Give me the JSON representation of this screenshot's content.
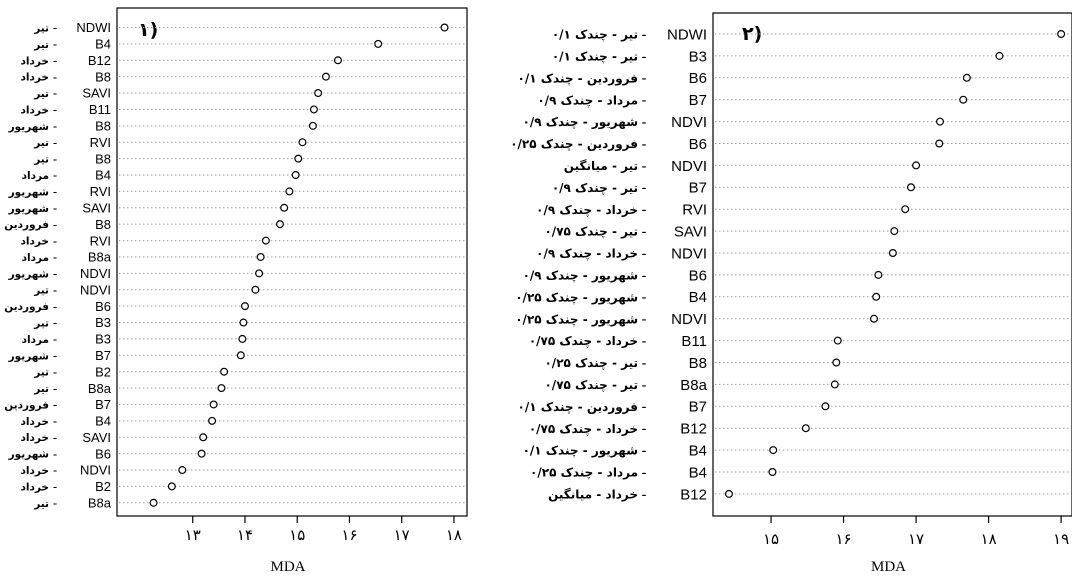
{
  "chart_data": [
    {
      "type": "scatter",
      "panel_label": "۱)",
      "xlabel": "MDA",
      "xlim": [
        11.55,
        18.25
      ],
      "x_ticks": [
        13,
        14,
        15,
        16,
        17,
        18
      ],
      "x_tick_labels": [
        "۱۳",
        "۱۴",
        "۱۵",
        "۱۶",
        "۱۷",
        "۱۸"
      ],
      "grid": "dotted horizontal lines per row",
      "rows": [
        {
          "variable": "NDWI",
          "date": "تیر",
          "value": 17.82
        },
        {
          "variable": "B4",
          "date": "تیر",
          "value": 16.55
        },
        {
          "variable": "B12",
          "date": "خرداد",
          "value": 15.78
        },
        {
          "variable": "B8",
          "date": "خرداد",
          "value": 15.55
        },
        {
          "variable": "SAVI",
          "date": "تیر",
          "value": 15.4
        },
        {
          "variable": "B11",
          "date": "خرداد",
          "value": 15.32
        },
        {
          "variable": "B8",
          "date": "شهریور",
          "value": 15.3
        },
        {
          "variable": "RVI",
          "date": "تیر",
          "value": 15.1
        },
        {
          "variable": "B8",
          "date": "تیر",
          "value": 15.02
        },
        {
          "variable": "B4",
          "date": "مرداد",
          "value": 14.97
        },
        {
          "variable": "RVI",
          "date": "شهریور",
          "value": 14.85
        },
        {
          "variable": "SAVI",
          "date": "شهریور",
          "value": 14.75
        },
        {
          "variable": "B8",
          "date": "فروردین",
          "value": 14.67
        },
        {
          "variable": "RVI",
          "date": "خرداد",
          "value": 14.4
        },
        {
          "variable": "B8a",
          "date": "مرداد",
          "value": 14.3
        },
        {
          "variable": "NDVI",
          "date": "شهریور",
          "value": 14.27
        },
        {
          "variable": "NDVI",
          "date": "تیر",
          "value": 14.2
        },
        {
          "variable": "B6",
          "date": "فروردین",
          "value": 14.0
        },
        {
          "variable": "B3",
          "date": "تیر",
          "value": 13.97
        },
        {
          "variable": "B3",
          "date": "مرداد",
          "value": 13.95
        },
        {
          "variable": "B7",
          "date": "شهریور",
          "value": 13.92
        },
        {
          "variable": "B2",
          "date": "تیر",
          "value": 13.6
        },
        {
          "variable": "B8a",
          "date": "تیر",
          "value": 13.55
        },
        {
          "variable": "B7",
          "date": "فروردین",
          "value": 13.4
        },
        {
          "variable": "B4",
          "date": "خرداد",
          "value": 13.37
        },
        {
          "variable": "SAVI",
          "date": "خرداد",
          "value": 13.2
        },
        {
          "variable": "B6",
          "date": "شهریور",
          "value": 13.17
        },
        {
          "variable": "NDVI",
          "date": "خرداد",
          "value": 12.8
        },
        {
          "variable": "B2",
          "date": "خرداد",
          "value": 12.6
        },
        {
          "variable": "B8a",
          "date": "تیر",
          "value": 12.25
        }
      ]
    },
    {
      "type": "scatter",
      "panel_label": "۲)",
      "xlabel": "MDA",
      "xlim": [
        14.2,
        19.15
      ],
      "x_ticks": [
        15,
        16,
        17,
        18,
        19
      ],
      "x_tick_labels": [
        "۱۵",
        "۱۶",
        "۱۷",
        "۱۸",
        "۱۹"
      ],
      "grid": "dotted horizontal lines per row",
      "rows": [
        {
          "variable": "NDWI",
          "date": "تیر - چندک ۰/۱",
          "value": 19.0
        },
        {
          "variable": "B3",
          "date": "تیر - چندک ۰/۱",
          "value": 18.15
        },
        {
          "variable": "B6",
          "date": "فروردین - چندک ۰/۱",
          "value": 17.7
        },
        {
          "variable": "B7",
          "date": "مرداد - چندک ۰/۹",
          "value": 17.65
        },
        {
          "variable": "NDVI",
          "date": "شهریور - چندک ۰/۹",
          "value": 17.33
        },
        {
          "variable": "B6",
          "date": "فروردین - چندک ۰/۲۵",
          "value": 17.32
        },
        {
          "variable": "NDVI",
          "date": "تیر - میانگین",
          "value": 17.0
        },
        {
          "variable": "B7",
          "date": "تیر - چندک ۰/۹",
          "value": 16.93
        },
        {
          "variable": "RVI",
          "date": "خرداد - چندک ۰/۹",
          "value": 16.85
        },
        {
          "variable": "SAVI",
          "date": "تیر - چندک ۰/۷۵",
          "value": 16.7
        },
        {
          "variable": "NDVI",
          "date": "خرداد - چندک ۰/۹",
          "value": 16.68
        },
        {
          "variable": "B6",
          "date": "شهریور - چندک ۰/۹",
          "value": 16.48
        },
        {
          "variable": "B4",
          "date": "شهریور - چندک ۰/۲۵",
          "value": 16.45
        },
        {
          "variable": "NDVI",
          "date": "شهریور - چندک ۰/۲۵",
          "value": 16.42
        },
        {
          "variable": "B11",
          "date": "خرداد - چندک ۰/۷۵",
          "value": 15.92
        },
        {
          "variable": "B8",
          "date": "تیر - چندک ۰/۲۵",
          "value": 15.9
        },
        {
          "variable": "B8a",
          "date": "تیر - چندک ۰/۷۵",
          "value": 15.88
        },
        {
          "variable": "B7",
          "date": "فروردین - چندک ۰/۱",
          "value": 15.75
        },
        {
          "variable": "B12",
          "date": "خرداد - چندک ۰/۷۵",
          "value": 15.48
        },
        {
          "variable": "B4",
          "date": "شهریور - چندک ۰/۱",
          "value": 15.03
        },
        {
          "variable": "B4",
          "date": "مرداد - چندک ۰/۲۵",
          "value": 15.02
        },
        {
          "variable": "B12",
          "date": "خرداد - میانگین",
          "value": 14.42
        }
      ]
    }
  ]
}
